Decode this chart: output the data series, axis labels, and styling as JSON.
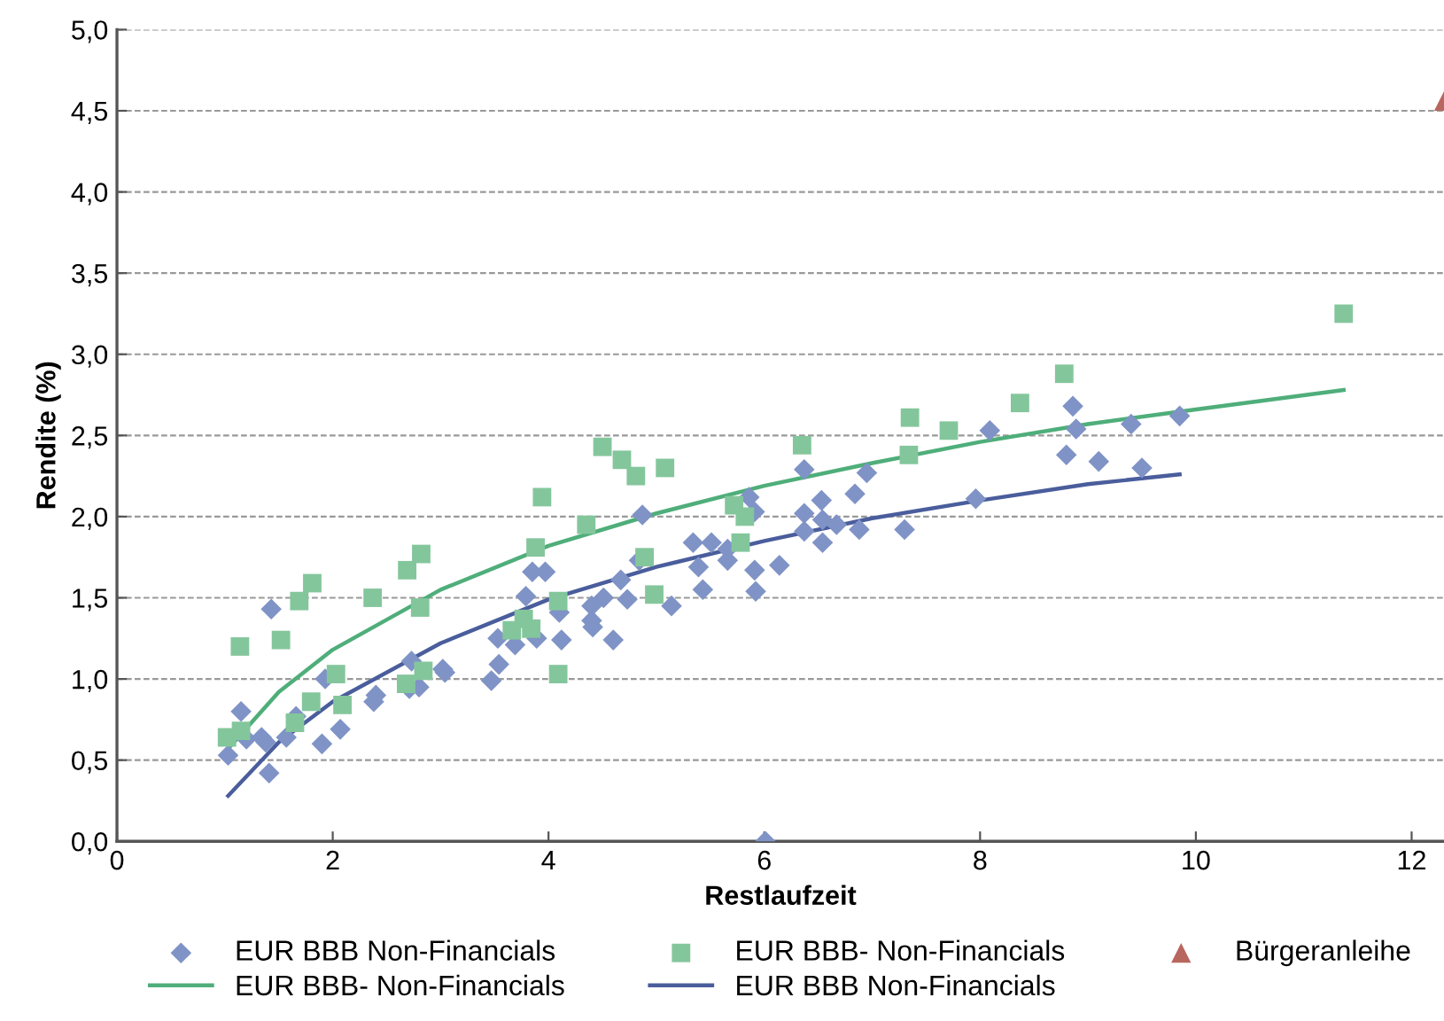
{
  "chart_data": {
    "type": "scatter",
    "xlabel": "Restlaufzeit",
    "ylabel": "Rendite (%)",
    "xlim": [
      0,
      12.3
    ],
    "ylim": [
      0,
      5
    ],
    "xticks": [
      0,
      2,
      4,
      6,
      8,
      10,
      12
    ],
    "yticks": [
      {
        "value": 0,
        "label": "0,0"
      },
      {
        "value": 0.5,
        "label": "0,5"
      },
      {
        "value": 1,
        "label": "1,0"
      },
      {
        "value": 1.5,
        "label": "1,5"
      },
      {
        "value": 2,
        "label": "2,0"
      },
      {
        "value": 2.5,
        "label": "2,5"
      },
      {
        "value": 3,
        "label": "3,0"
      },
      {
        "value": 3.5,
        "label": "3,5"
      },
      {
        "value": 4,
        "label": "4,0"
      },
      {
        "value": 4.5,
        "label": "4,5"
      },
      {
        "value": 5,
        "label": "5,0"
      }
    ],
    "grid": "y",
    "legend": "bottom",
    "series": [
      {
        "name": "EUR BBB Non-Financials",
        "marker": "diamond",
        "color": "#7f93c6",
        "x": [
          1.03,
          1.15,
          1.2,
          1.34,
          1.38,
          1.43,
          1.41,
          1.57,
          1.66,
          1.9,
          1.93,
          2.07,
          2.38,
          2.4,
          2.73,
          2.71,
          2.8,
          3.02,
          3.04,
          3.47,
          3.53,
          3.54,
          3.69,
          3.79,
          3.85,
          3.97,
          3.89,
          4.1,
          4.12,
          4.4,
          4.41,
          4.4,
          4.51,
          4.6,
          4.67,
          4.73,
          4.87,
          4.84,
          5.14,
          5.34,
          5.51,
          5.39,
          5.43,
          5.66,
          5.66,
          5.86,
          5.91,
          5.91,
          5.92,
          6.14,
          6.01,
          6.37,
          6.37,
          6.37,
          6.53,
          6.54,
          6.54,
          6.67,
          6.84,
          6.88,
          6.95,
          7.3,
          7.96,
          8.09,
          8.86,
          8.89,
          8.8,
          9.1,
          9.4,
          9.5,
          9.85
        ],
        "values": [
          0.53,
          0.8,
          0.63,
          0.64,
          0.61,
          1.43,
          0.42,
          0.64,
          0.77,
          0.6,
          1.0,
          0.69,
          0.86,
          0.9,
          1.11,
          0.94,
          0.95,
          1.06,
          1.04,
          0.99,
          1.25,
          1.09,
          1.21,
          1.51,
          1.66,
          1.66,
          1.25,
          1.41,
          1.24,
          1.45,
          1.32,
          1.36,
          1.5,
          1.24,
          1.61,
          1.49,
          2.01,
          1.73,
          1.45,
          1.84,
          1.84,
          1.69,
          1.55,
          1.73,
          1.8,
          2.12,
          2.03,
          1.67,
          1.54,
          1.7,
          0.0,
          2.29,
          2.02,
          1.91,
          2.1,
          1.98,
          1.84,
          1.95,
          2.14,
          1.92,
          2.27,
          1.92,
          2.11,
          2.53,
          2.68,
          2.54,
          2.38,
          2.34,
          2.57,
          2.3,
          2.62
        ]
      },
      {
        "name": "EUR BBB- Non-Financials",
        "marker": "square",
        "color": "#84c69c",
        "x": [
          1.02,
          1.15,
          1.14,
          1.52,
          1.65,
          1.69,
          1.81,
          1.8,
          2.03,
          2.09,
          2.37,
          2.69,
          2.82,
          2.81,
          2.68,
          2.84,
          3.94,
          3.88,
          3.66,
          3.84,
          3.77,
          4.09,
          4.09,
          4.35,
          4.5,
          4.68,
          4.81,
          5.08,
          4.89,
          4.98,
          5.72,
          5.82,
          5.78,
          6.35,
          7.35,
          7.34,
          7.71,
          8.37,
          8.78,
          11.37
        ],
        "values": [
          0.64,
          0.68,
          1.2,
          1.24,
          0.73,
          1.48,
          1.59,
          0.86,
          1.03,
          0.84,
          1.5,
          1.67,
          1.77,
          1.44,
          0.97,
          1.05,
          2.12,
          1.81,
          1.3,
          1.31,
          1.37,
          1.48,
          1.03,
          1.95,
          2.43,
          2.35,
          2.25,
          2.3,
          1.75,
          1.52,
          2.07,
          2.0,
          1.84,
          2.44,
          2.61,
          2.38,
          2.53,
          2.7,
          2.88,
          3.25
        ]
      },
      {
        "name": "Bürgeranleihe",
        "marker": "triangle",
        "color": "#b8675e",
        "x": [
          12.3
        ],
        "values": [
          4.56
        ]
      },
      {
        "name": "EUR BBB- Non-Financials",
        "type": "line",
        "marker": "none",
        "line_style": "solid",
        "color": "#4fae7a",
        "x": [
          1.03,
          1.5,
          2,
          3,
          4,
          5,
          6,
          7,
          8,
          9,
          10,
          11.37
        ],
        "values": [
          0.57,
          0.92,
          1.18,
          1.55,
          1.82,
          2.02,
          2.19,
          2.33,
          2.46,
          2.57,
          2.66,
          2.78
        ]
      },
      {
        "name": "EUR BBB Non-Financials",
        "type": "line",
        "marker": "none",
        "line_style": "solid",
        "color": "#4a5d9c",
        "x": [
          1.03,
          1.5,
          2,
          3,
          4,
          5,
          6,
          7,
          8,
          9,
          9.85
        ],
        "values": [
          0.28,
          0.61,
          0.86,
          1.22,
          1.49,
          1.69,
          1.85,
          1.99,
          2.1,
          2.2,
          2.26
        ]
      }
    ]
  }
}
